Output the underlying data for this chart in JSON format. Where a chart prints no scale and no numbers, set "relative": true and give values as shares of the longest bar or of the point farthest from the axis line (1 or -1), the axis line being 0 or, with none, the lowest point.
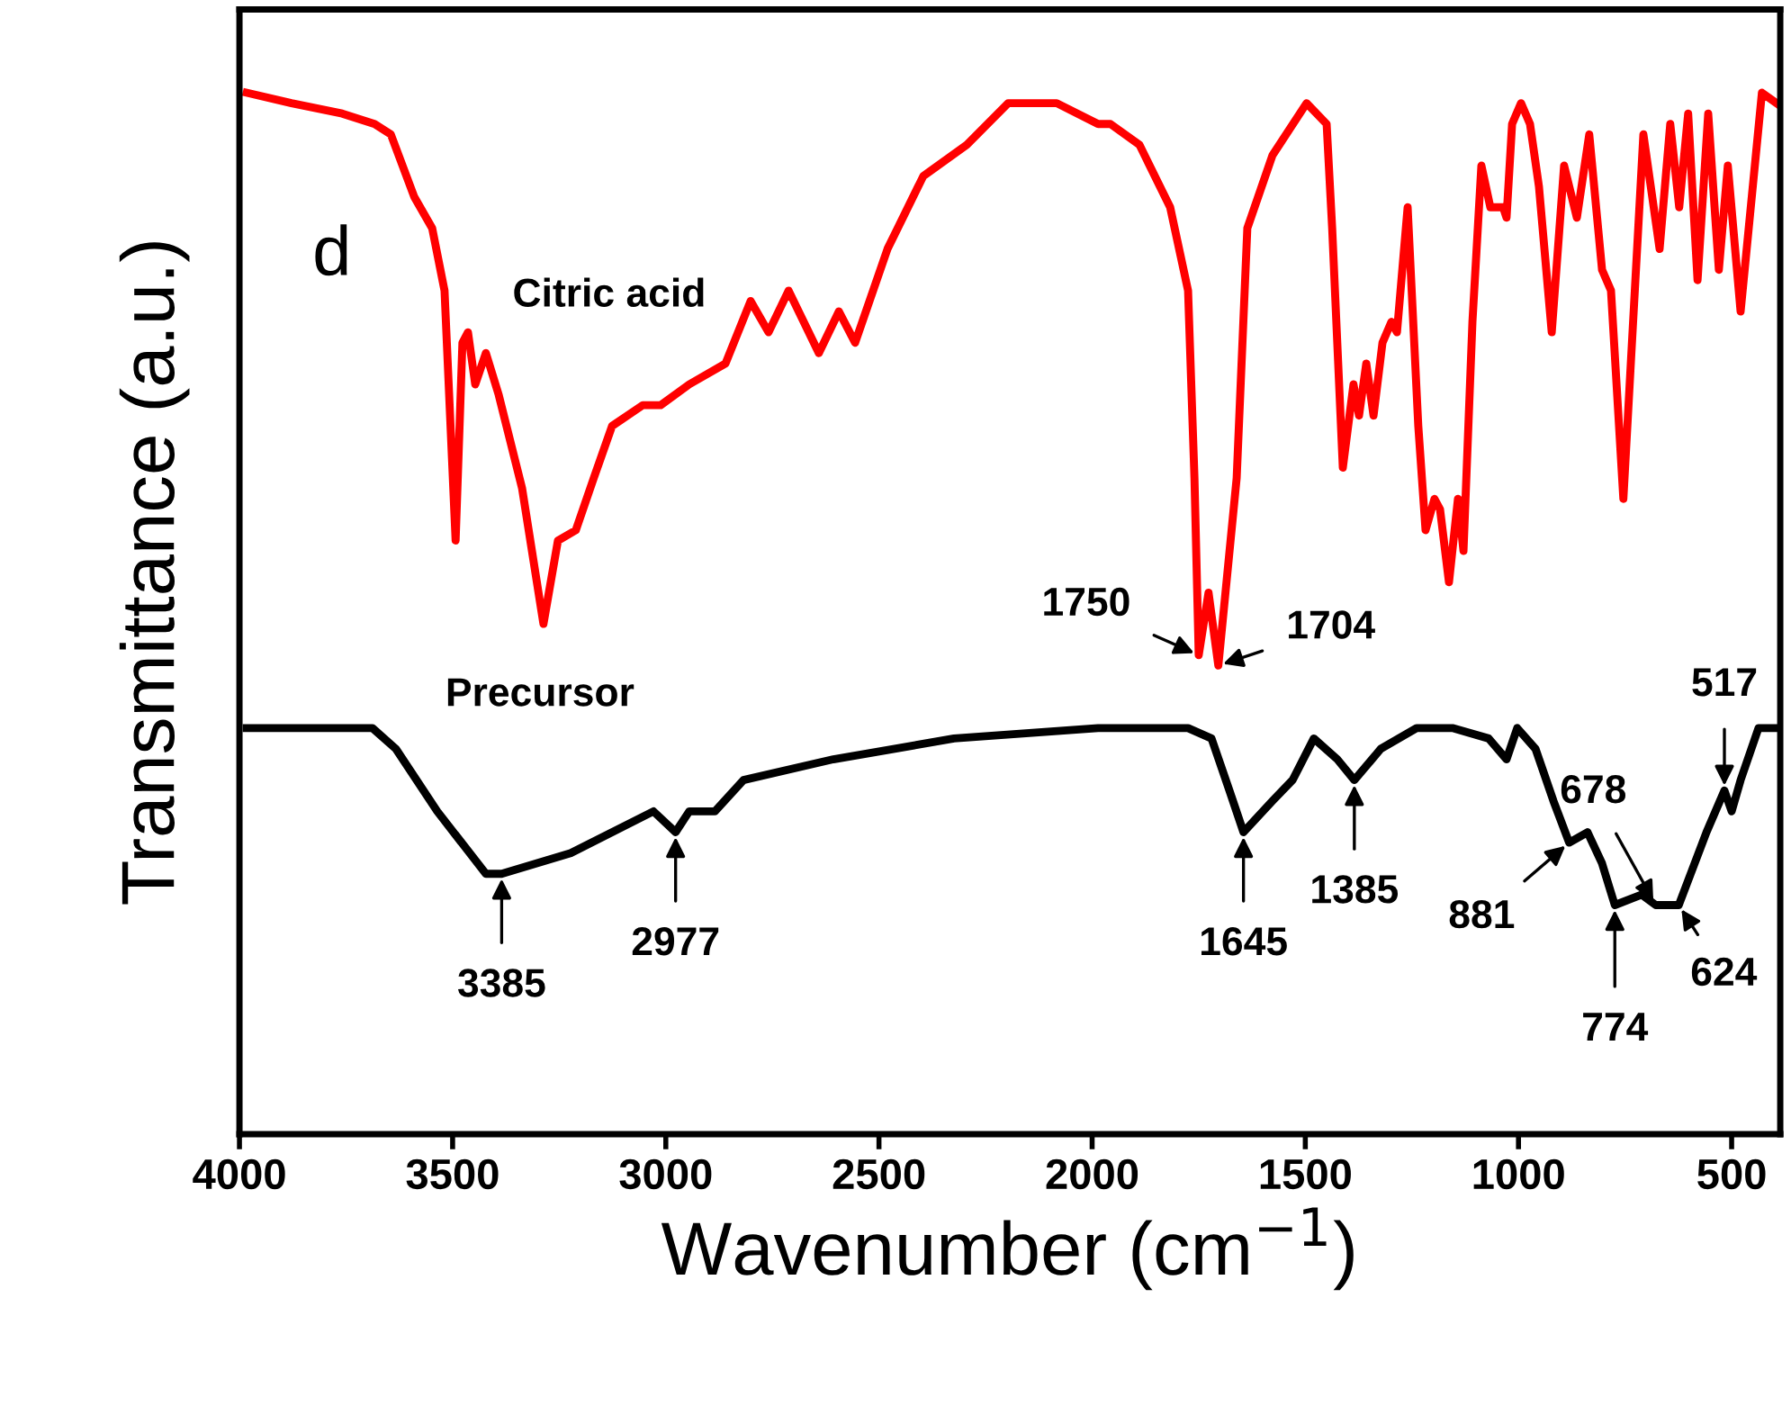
{
  "chart_data": {
    "type": "line",
    "relative": true,
    "xlabel": "Wavenumber (cm$^{−1}$)",
    "ylabel": "Transmittance (a.u.)",
    "xlim": [
      4000,
      386
    ],
    "xticks": [
      4000,
      3500,
      3000,
      2500,
      2000,
      1500,
      1000,
      500
    ],
    "grid": false,
    "legend": false,
    "marker": "none",
    "line_style": "solid",
    "series": [
      {
        "name": "Citric acid",
        "color": "#ff0000",
        "x": [
          3983,
          3878,
          3759,
          3683,
          3645,
          3590,
          3548,
          3519,
          3506,
          3493,
          3477,
          3464,
          3447,
          3422,
          3392,
          3337,
          3287,
          3253,
          3211,
          3169,
          3126,
          3054,
          3012,
          2945,
          2860,
          2801,
          2759,
          2712,
          2641,
          2594,
          2556,
          2480,
          2396,
          2294,
          2197,
          2083,
          1986,
          1957,
          1889,
          1817,
          1775,
          1760,
          1750,
          1727,
          1704,
          1661,
          1636,
          1577,
          1497,
          1450,
          1437,
          1412,
          1387,
          1374,
          1357,
          1340,
          1319,
          1298,
          1285,
          1260,
          1235,
          1218,
          1197,
          1184,
          1163,
          1142,
          1129,
          1108,
          1087,
          1066,
          1036,
          1028,
          1015,
          994,
          973,
          952,
          922,
          893,
          863,
          834,
          804,
          783,
          754,
          707,
          669,
          644,
          623,
          602,
          580,
          555,
          530,
          509,
          479,
          429,
          395
        ],
        "values": [
          1.0,
          0.99,
          0.98,
          0.97,
          0.96,
          0.9,
          0.87,
          0.81,
          0.69,
          0.57,
          0.76,
          0.77,
          0.72,
          0.75,
          0.71,
          0.62,
          0.49,
          0.57,
          0.58,
          0.63,
          0.68,
          0.7,
          0.7,
          0.72,
          0.74,
          0.8,
          0.77,
          0.81,
          0.75,
          0.79,
          0.76,
          0.85,
          0.92,
          0.95,
          0.99,
          0.99,
          0.97,
          0.97,
          0.95,
          0.89,
          0.81,
          0.63,
          0.46,
          0.52,
          0.45,
          0.63,
          0.87,
          0.94,
          0.99,
          0.97,
          0.87,
          0.64,
          0.72,
          0.69,
          0.74,
          0.69,
          0.76,
          0.78,
          0.77,
          0.89,
          0.68,
          0.58,
          0.61,
          0.6,
          0.53,
          0.61,
          0.56,
          0.78,
          0.93,
          0.89,
          0.89,
          0.88,
          0.97,
          0.99,
          0.97,
          0.91,
          0.77,
          0.93,
          0.88,
          0.96,
          0.83,
          0.81,
          0.61,
          0.96,
          0.85,
          0.97,
          0.89,
          0.98,
          0.82,
          0.98,
          0.83,
          0.93,
          0.79,
          1.0,
          0.99
        ]
      },
      {
        "name": "Precursor",
        "color": "#000000",
        "x": [
          3983,
          3688,
          3633,
          3536,
          3422,
          3385,
          3223,
          3029,
          2977,
          2945,
          2885,
          2818,
          2607,
          2324,
          1986,
          1775,
          1720,
          1678,
          1645,
          1577,
          1530,
          1480,
          1425,
          1385,
          1323,
          1239,
          1155,
          1070,
          1028,
          1003,
          960,
          918,
          881,
          838,
          804,
          774,
          711,
          678,
          624,
          559,
          517,
          500,
          479,
          437,
          395
        ],
        "values": [
          0.39,
          0.39,
          0.37,
          0.31,
          0.25,
          0.25,
          0.27,
          0.31,
          0.29,
          0.31,
          0.31,
          0.34,
          0.36,
          0.38,
          0.39,
          0.39,
          0.38,
          0.33,
          0.29,
          0.32,
          0.34,
          0.38,
          0.36,
          0.34,
          0.37,
          0.39,
          0.39,
          0.38,
          0.36,
          0.39,
          0.37,
          0.32,
          0.28,
          0.29,
          0.26,
          0.22,
          0.23,
          0.22,
          0.22,
          0.29,
          0.33,
          0.31,
          0.34,
          0.39,
          0.39
        ]
      }
    ],
    "annotations": [
      "d",
      {
        "text": "1750",
        "x": 1750,
        "y": 0.46
      },
      {
        "text": "1704",
        "x": 1704,
        "y": 0.45
      },
      {
        "text": "3385",
        "x": 3385,
        "y": 0.25
      },
      {
        "text": "2977",
        "x": 2977,
        "y": 0.29
      },
      {
        "text": "1645",
        "x": 1645,
        "y": 0.29
      },
      {
        "text": "1385",
        "x": 1385,
        "y": 0.34
      },
      {
        "text": "881",
        "x": 881,
        "y": 0.28
      },
      {
        "text": "774",
        "x": 774,
        "y": 0.22
      },
      {
        "text": "678",
        "x": 678,
        "y": 0.22
      },
      {
        "text": "624",
        "x": 624,
        "y": 0.22
      },
      {
        "text": "517",
        "x": 517,
        "y": 0.33
      }
    ]
  }
}
